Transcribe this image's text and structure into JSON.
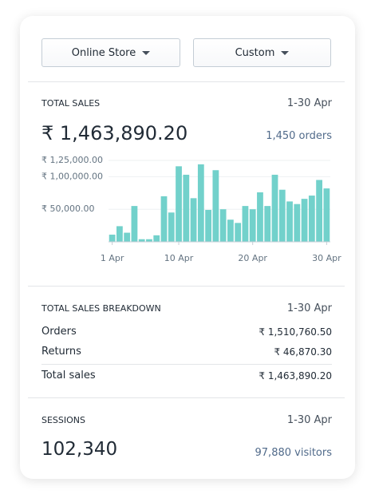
{
  "filters": [
    "Online Store",
    "Custom"
  ],
  "total_sales": {
    "title": "TOTAL SALES",
    "period": "1-30 Apr",
    "amount": "₹ 1,463,890.20",
    "orders": "1,450 orders"
  },
  "chart_data": {
    "type": "bar",
    "categories": [
      "1 Apr",
      null,
      null,
      null,
      null,
      null,
      null,
      null,
      null,
      "10 Apr",
      null,
      null,
      null,
      null,
      null,
      null,
      null,
      null,
      null,
      "20 Apr",
      null,
      null,
      null,
      null,
      null,
      null,
      null,
      null,
      null,
      "30 Apr"
    ],
    "values": [
      11000,
      24000,
      14000,
      55000,
      4000,
      4000,
      10000,
      70000,
      45000,
      116000,
      103000,
      67000,
      119000,
      49000,
      110000,
      50000,
      34000,
      29000,
      55000,
      50000,
      76000,
      55000,
      103000,
      80000,
      62000,
      58000,
      66000,
      71000,
      95000,
      82000
    ],
    "color": "#72d1cb",
    "ylim": [
      0,
      125000
    ],
    "yticks": [
      {
        "value": 50000,
        "label": "₹ 50,000.00"
      },
      {
        "value": 100000,
        "label": "₹ 1,00,000.00"
      },
      {
        "value": 125000,
        "label": "₹ 1,25,000.00"
      }
    ],
    "grid": true
  },
  "breakdown": {
    "title": "TOTAL SALES BREAKDOWN",
    "period": "1-30 Apr",
    "rows": [
      {
        "label": "Orders",
        "value": "₹ 1,510,760.50"
      },
      {
        "label": "Returns",
        "value": "₹ 46,870.30"
      }
    ],
    "total": {
      "label": "Total sales",
      "value": "₹ 1,463,890.20"
    }
  },
  "sessions": {
    "title": "SESSIONS",
    "period": "1-30 Apr",
    "value": "102,340",
    "visitors": "97,880 visitors"
  }
}
